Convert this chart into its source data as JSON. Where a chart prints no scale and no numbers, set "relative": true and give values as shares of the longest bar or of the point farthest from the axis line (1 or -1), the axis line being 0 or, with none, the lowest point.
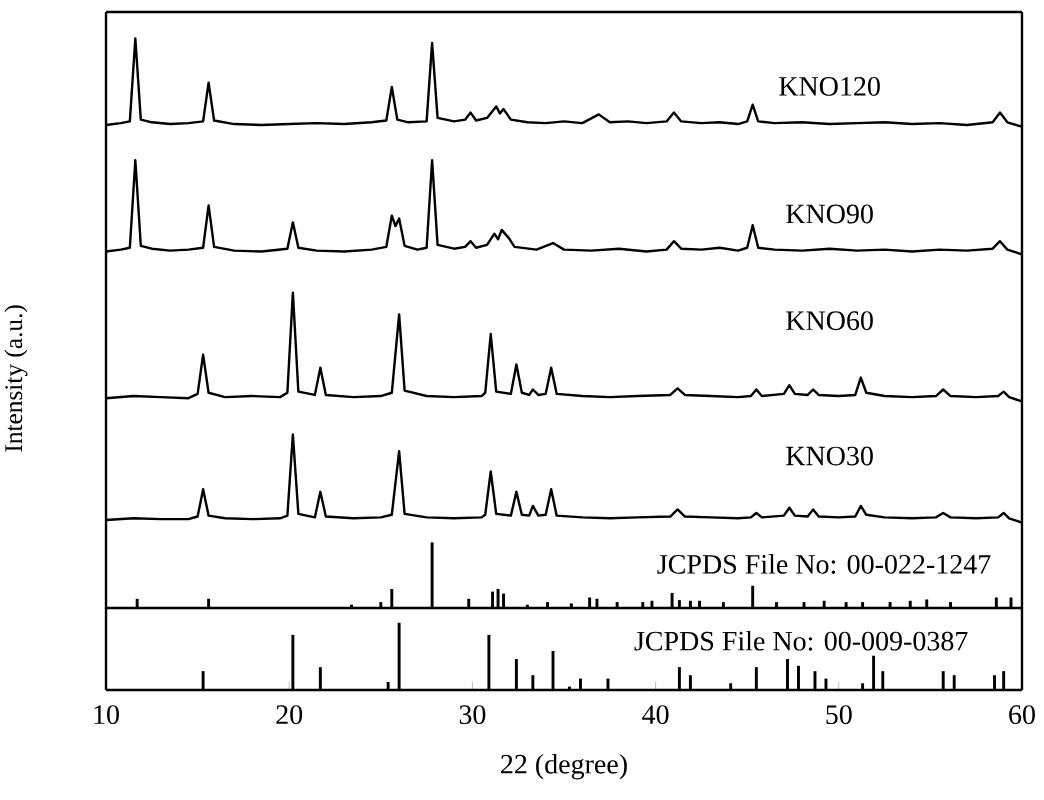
{
  "chart_data": [
    {
      "type": "line",
      "relative": true,
      "xlim": [
        10,
        60
      ],
      "tick_labels": false,
      "x": [
        10,
        10.8,
        11.3,
        11.6,
        11.9,
        12.5,
        13.5,
        14.5,
        15.3,
        15.6,
        15.9,
        17,
        18.5,
        20,
        21.5,
        23,
        24.5,
        25.3,
        25.6,
        25.9,
        26.5,
        27.5,
        27.8,
        28.1,
        29,
        29.6,
        29.9,
        30.2,
        30.8,
        31.3,
        31.5,
        31.7,
        32.1,
        33,
        34,
        35,
        36,
        36.9,
        37.5,
        38.5,
        39.5,
        40.6,
        41,
        41.4,
        42.5,
        43.5,
        44.5,
        45,
        45.3,
        45.6,
        46.5,
        48,
        49.5,
        51,
        52.5,
        54,
        55.5,
        57,
        58.4,
        58.8,
        59.2,
        60
      ],
      "series": [
        {
          "name": "KNO120",
          "color": "#000000",
          "values": [
            0.02,
            0.04,
            0.06,
            1.0,
            0.08,
            0.05,
            0.03,
            0.04,
            0.06,
            0.5,
            0.07,
            0.03,
            0.02,
            0.03,
            0.04,
            0.03,
            0.05,
            0.07,
            0.45,
            0.08,
            0.05,
            0.06,
            0.95,
            0.1,
            0.06,
            0.08,
            0.16,
            0.07,
            0.1,
            0.23,
            0.15,
            0.2,
            0.08,
            0.05,
            0.04,
            0.06,
            0.04,
            0.14,
            0.05,
            0.06,
            0.04,
            0.06,
            0.16,
            0.06,
            0.04,
            0.05,
            0.03,
            0.06,
            0.25,
            0.06,
            0.04,
            0.05,
            0.03,
            0.04,
            0.05,
            0.03,
            0.04,
            0.02,
            0.05,
            0.16,
            0.05,
            0
          ]
        }
      ]
    },
    {
      "type": "line",
      "relative": true,
      "xlim": [
        10,
        60
      ],
      "tick_labels": false,
      "x": [
        10,
        10.8,
        11.3,
        11.6,
        11.9,
        12.5,
        13.5,
        14.5,
        15.3,
        15.6,
        15.9,
        17,
        18.5,
        19.9,
        20.2,
        20.5,
        21.5,
        23,
        24.5,
        25.3,
        25.6,
        25.8,
        26.0,
        26.3,
        27,
        27.5,
        27.8,
        28.1,
        29,
        29.6,
        29.9,
        30.2,
        30.8,
        31.2,
        31.4,
        31.6,
        32.0,
        32.3,
        33.5,
        34.4,
        35,
        36.5,
        38,
        39.5,
        40.6,
        41,
        41.4,
        42.5,
        43.5,
        44.5,
        45,
        45.3,
        45.6,
        46.5,
        48,
        49.5,
        51,
        52.5,
        54,
        55.5,
        57,
        58.4,
        58.8,
        59.2,
        60
      ],
      "series": [
        {
          "name": "KNO90",
          "color": "#000000",
          "values": [
            0.03,
            0.05,
            0.07,
            1.0,
            0.09,
            0.06,
            0.04,
            0.05,
            0.07,
            0.52,
            0.08,
            0.04,
            0.03,
            0.06,
            0.34,
            0.07,
            0.04,
            0.03,
            0.05,
            0.08,
            0.41,
            0.3,
            0.38,
            0.09,
            0.05,
            0.07,
            1.0,
            0.1,
            0.06,
            0.08,
            0.14,
            0.07,
            0.1,
            0.22,
            0.16,
            0.26,
            0.17,
            0.08,
            0.05,
            0.12,
            0.05,
            0.04,
            0.06,
            0.03,
            0.05,
            0.14,
            0.06,
            0.05,
            0.07,
            0.04,
            0.07,
            0.31,
            0.07,
            0.05,
            0.04,
            0.06,
            0.04,
            0.05,
            0.03,
            0.05,
            0.04,
            0.06,
            0.14,
            0.05,
            0
          ]
        }
      ]
    },
    {
      "type": "line",
      "relative": true,
      "xlim": [
        10,
        60
      ],
      "tick_labels": false,
      "ylabel": "Intensity (a.u.)",
      "x": [
        10,
        11.5,
        13,
        14.5,
        15,
        15.3,
        15.6,
        16.5,
        18,
        19.5,
        19.9,
        20.2,
        20.5,
        21.4,
        21.7,
        22,
        23.5,
        25,
        25.6,
        26.0,
        26.3,
        27.5,
        29,
        30.5,
        30.7,
        31.0,
        31.3,
        32.1,
        32.4,
        32.7,
        33.1,
        33.3,
        33.6,
        34.0,
        34.3,
        34.6,
        36,
        37.5,
        39,
        40.8,
        41.2,
        41.6,
        43,
        44.5,
        45.2,
        45.5,
        45.8,
        47.0,
        47.3,
        47.6,
        48.3,
        48.6,
        48.9,
        50,
        50.9,
        51.2,
        51.5,
        52.5,
        54,
        55.3,
        55.7,
        56.1,
        57.5,
        58.7,
        59.0,
        59.3,
        60
      ],
      "series": [
        {
          "name": "KNO60",
          "color": "#000000",
          "values": [
            0.03,
            0.05,
            0.04,
            0.03,
            0.07,
            0.43,
            0.08,
            0.04,
            0.05,
            0.04,
            0.08,
            1.0,
            0.09,
            0.06,
            0.31,
            0.06,
            0.04,
            0.05,
            0.08,
            0.8,
            0.1,
            0.05,
            0.04,
            0.05,
            0.08,
            0.62,
            0.09,
            0.07,
            0.34,
            0.08,
            0.06,
            0.11,
            0.06,
            0.07,
            0.31,
            0.07,
            0.05,
            0.04,
            0.05,
            0.06,
            0.12,
            0.06,
            0.05,
            0.04,
            0.05,
            0.11,
            0.05,
            0.07,
            0.15,
            0.07,
            0.06,
            0.11,
            0.06,
            0.05,
            0.06,
            0.22,
            0.08,
            0.05,
            0.04,
            0.05,
            0.11,
            0.05,
            0.04,
            0.05,
            0.09,
            0.04,
            0
          ]
        }
      ]
    },
    {
      "type": "line",
      "relative": true,
      "xlim": [
        10,
        60
      ],
      "tick_labels": false,
      "x": [
        10,
        11.5,
        13,
        14.5,
        15,
        15.3,
        15.6,
        16.5,
        18,
        19.5,
        19.9,
        20.2,
        20.5,
        21.4,
        21.7,
        22,
        23.5,
        25,
        25.6,
        26.0,
        26.3,
        27.5,
        29,
        30.5,
        30.7,
        31.0,
        31.3,
        32.1,
        32.4,
        32.7,
        33.1,
        33.3,
        33.6,
        34.0,
        34.3,
        34.6,
        36,
        37.5,
        39,
        40.8,
        41.2,
        41.6,
        43,
        44.5,
        45.2,
        45.5,
        45.8,
        47.0,
        47.3,
        47.6,
        48.3,
        48.6,
        48.9,
        50,
        50.9,
        51.2,
        51.5,
        52.5,
        54,
        55.3,
        55.7,
        56.1,
        57.5,
        58.7,
        59.0,
        59.3,
        60
      ],
      "series": [
        {
          "name": "KNO30",
          "color": "#000000",
          "values": [
            0.03,
            0.05,
            0.04,
            0.04,
            0.07,
            0.38,
            0.08,
            0.05,
            0.04,
            0.05,
            0.08,
            1.0,
            0.1,
            0.06,
            0.35,
            0.07,
            0.05,
            0.06,
            0.09,
            0.81,
            0.1,
            0.06,
            0.05,
            0.06,
            0.09,
            0.58,
            0.1,
            0.08,
            0.35,
            0.09,
            0.08,
            0.19,
            0.08,
            0.09,
            0.38,
            0.08,
            0.06,
            0.05,
            0.06,
            0.07,
            0.15,
            0.07,
            0.06,
            0.05,
            0.06,
            0.11,
            0.06,
            0.08,
            0.17,
            0.08,
            0.07,
            0.15,
            0.07,
            0.06,
            0.07,
            0.19,
            0.09,
            0.06,
            0.05,
            0.06,
            0.11,
            0.06,
            0.05,
            0.06,
            0.11,
            0.05,
            0
          ]
        }
      ]
    },
    {
      "type": "bar",
      "relative": true,
      "xlim": [
        10,
        60
      ],
      "tick_labels": false,
      "x": [
        11.7,
        15.6,
        23.4,
        25.0,
        25.6,
        27.8,
        29.8,
        31.1,
        31.4,
        31.7,
        33.0,
        34.1,
        35.4,
        36.4,
        36.8,
        37.9,
        39.3,
        39.8,
        40.9,
        41.3,
        41.9,
        42.4,
        43.7,
        45.3,
        46.6,
        48.1,
        49.2,
        50.4,
        51.3,
        52.8,
        53.9,
        54.8,
        56.1,
        58.6,
        59.4
      ],
      "series": [
        {
          "name": "JCPDS File No: 00-022-1247",
          "color": "#000000",
          "values": [
            0.14,
            0.14,
            0.05,
            0.09,
            0.29,
            1.0,
            0.14,
            0.25,
            0.29,
            0.22,
            0.05,
            0.09,
            0.07,
            0.16,
            0.14,
            0.09,
            0.09,
            0.11,
            0.23,
            0.12,
            0.11,
            0.11,
            0.09,
            0.34,
            0.09,
            0.09,
            0.11,
            0.09,
            0.09,
            0.09,
            0.11,
            0.13,
            0.09,
            0.16,
            0.16
          ]
        }
      ]
    },
    {
      "type": "bar",
      "relative": true,
      "xlim": [
        10,
        60
      ],
      "xticks": [
        10,
        20,
        30,
        40,
        50,
        60
      ],
      "tick_labels": "x",
      "xlabel": "22 (degree)",
      "x": [
        15.3,
        20.2,
        21.7,
        25.4,
        26.0,
        30.9,
        32.4,
        33.3,
        34.4,
        35.3,
        35.9,
        37.4,
        41.3,
        41.9,
        44.1,
        45.5,
        47.2,
        47.8,
        48.7,
        49.3,
        51.3,
        51.9,
        52.4,
        55.7,
        56.3,
        58.5,
        59.0
      ],
      "series": [
        {
          "name": "JCPDS File No: 00-009-0387",
          "color": "#000000",
          "values": [
            0.28,
            0.82,
            0.34,
            0.12,
            1.0,
            0.82,
            0.46,
            0.22,
            0.58,
            0.05,
            0.17,
            0.17,
            0.34,
            0.22,
            0.1,
            0.34,
            0.46,
            0.36,
            0.28,
            0.17,
            0.1,
            0.51,
            0.28,
            0.28,
            0.22,
            0.22,
            0.28
          ]
        }
      ]
    }
  ]
}
